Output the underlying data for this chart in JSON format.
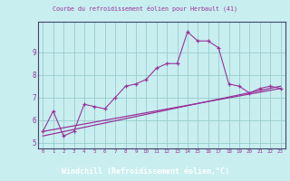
{
  "xlabel": "Windchill (Refroidissement éolien,°C)",
  "background_color": "#c8eef0",
  "grid_color": "#99cccc",
  "line_color": "#993399",
  "bottom_bar_color": "#330066",
  "text_color": "#993399",
  "xlim": [
    -0.5,
    23.5
  ],
  "ylim": [
    4.75,
    10.35
  ],
  "yticks": [
    5,
    6,
    7,
    8,
    9
  ],
  "xticks": [
    0,
    1,
    2,
    3,
    4,
    5,
    6,
    7,
    8,
    9,
    10,
    11,
    12,
    13,
    14,
    15,
    16,
    17,
    18,
    19,
    20,
    21,
    22,
    23
  ],
  "series1_x": [
    0,
    1,
    2,
    3,
    4,
    5,
    6,
    7,
    8,
    9,
    10,
    11,
    12,
    13,
    14,
    15,
    16,
    17,
    18,
    19,
    20,
    21,
    22,
    23
  ],
  "series1_y": [
    5.5,
    6.4,
    5.3,
    5.5,
    6.7,
    6.6,
    6.5,
    7.0,
    7.5,
    7.6,
    7.8,
    8.3,
    8.5,
    8.5,
    9.9,
    9.5,
    9.5,
    9.2,
    7.6,
    7.5,
    7.2,
    7.4,
    7.5,
    7.4
  ],
  "series2_x": [
    0,
    23
  ],
  "series2_y": [
    5.5,
    7.4
  ],
  "series3_x": [
    0,
    23
  ],
  "series3_y": [
    5.3,
    7.5
  ],
  "title_top": "Courbe du refroidissement éolien pour Herbault (41)"
}
